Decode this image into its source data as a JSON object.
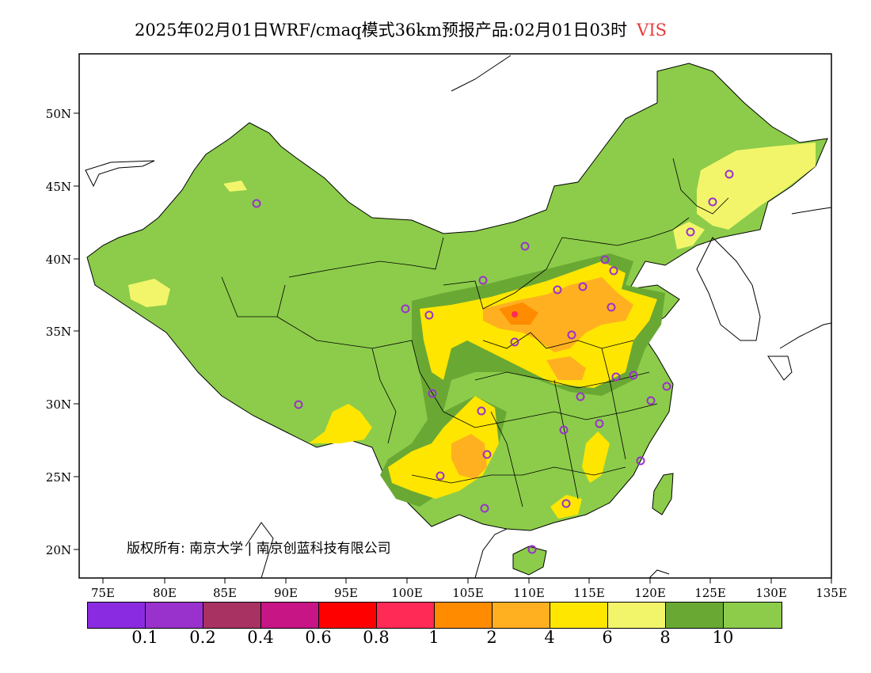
{
  "title": {
    "main": "2025年02月01日WRF/cmaq模式36km预报产品:02月01日03时",
    "variable": "VIS"
  },
  "axes": {
    "x_ticks": [
      "75E",
      "80E",
      "85E",
      "90E",
      "95E",
      "100E",
      "105E",
      "110E",
      "115E",
      "120E",
      "125E",
      "130E",
      "135E"
    ],
    "y_ticks": [
      "50N",
      "45N",
      "40N",
      "35N",
      "30N",
      "25N",
      "20N"
    ]
  },
  "copyright": "版权所有: 南京大学 | 南京创蓝科技有限公司",
  "legend": {
    "colors": [
      "#8a2be2",
      "#9932cc",
      "#a83262",
      "#c71585",
      "#ff0000",
      "#ff2a55",
      "#ff8c00",
      "#ffb020",
      "#ffe600",
      "#f2f56a",
      "#6aa834",
      "#8ccc4a"
    ],
    "labels": [
      "0.1",
      "0.2",
      "0.4",
      "0.6",
      "0.8",
      "1",
      "2",
      "4",
      "6",
      "8",
      "10"
    ]
  },
  "colors": {
    "land": "#8ccc4a",
    "dark_green": "#6aa834",
    "light_yellow": "#f2f56a",
    "yellow": "#ffe600",
    "orange_light": "#ffb020",
    "orange": "#ff8c00",
    "station_marker": "#9932cc"
  }
}
